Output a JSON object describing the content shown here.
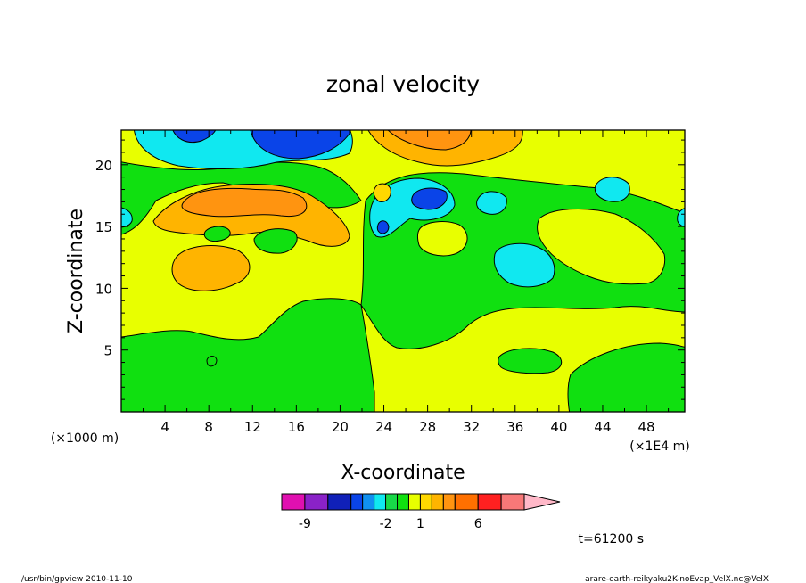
{
  "chart_data": {
    "type": "heatmap",
    "title": "zonal velocity",
    "xlabel": "X-coordinate",
    "ylabel": "Z-coordinate",
    "x_unit_label": "(×1E4 m)",
    "y_unit_label": "(×1000 m)",
    "xlim": [
      0,
      51.5
    ],
    "ylim": [
      0,
      22.8
    ],
    "x_ticks": [
      4,
      8,
      12,
      16,
      20,
      24,
      28,
      32,
      36,
      40,
      44,
      48
    ],
    "y_ticks": [
      5,
      10,
      15,
      20
    ],
    "time_label": "t=61200 s",
    "colorbar": {
      "levels": [
        -11,
        -9,
        -7,
        -5,
        -4,
        -3,
        -2,
        -1,
        0,
        1,
        2,
        3,
        4,
        6,
        8,
        10,
        12
      ],
      "colors": [
        "#e010b0",
        "#8a22c8",
        "#1020b8",
        "#0a44e8",
        "#1090f0",
        "#10e8f0",
        "#18d848",
        "#10e010",
        "#e8ff00",
        "#ffd800",
        "#ffb400",
        "#ff9410",
        "#ff7000",
        "#ff2020",
        "#f87878",
        "#ffb8c8"
      ],
      "tick_labels": [
        "-9",
        "-2",
        "1",
        "6"
      ],
      "extend": "max"
    },
    "regions": [
      {
        "level": "0 to 1",
        "color": "#e8ff00",
        "area": "background and lower-right"
      },
      {
        "level": "-1 to 0",
        "color": "#10e010",
        "area": "lower-left, center, mid-right"
      },
      {
        "level": "-3 to -2",
        "color": "#10e8f0",
        "area": "top-left, x=36, x=45"
      },
      {
        "level": "-5 to -4",
        "color": "#0a44e8",
        "area": "top x=12 to 20, x=26"
      },
      {
        "level": "1 to 2",
        "color": "#ffd800",
        "area": "x=8 to 20, z=11 to 18; top x=24 to 36"
      },
      {
        "level": "3 to 4",
        "color": "#ff9410",
        "area": "x=8 to 16, z=17 to 19; top x=26"
      }
    ]
  },
  "footer": {
    "left": "/usr/bin/gpview   2010-11-10",
    "right": "arare-earth-reikyaku2K-noEvap_VelX.nc@VelX"
  }
}
